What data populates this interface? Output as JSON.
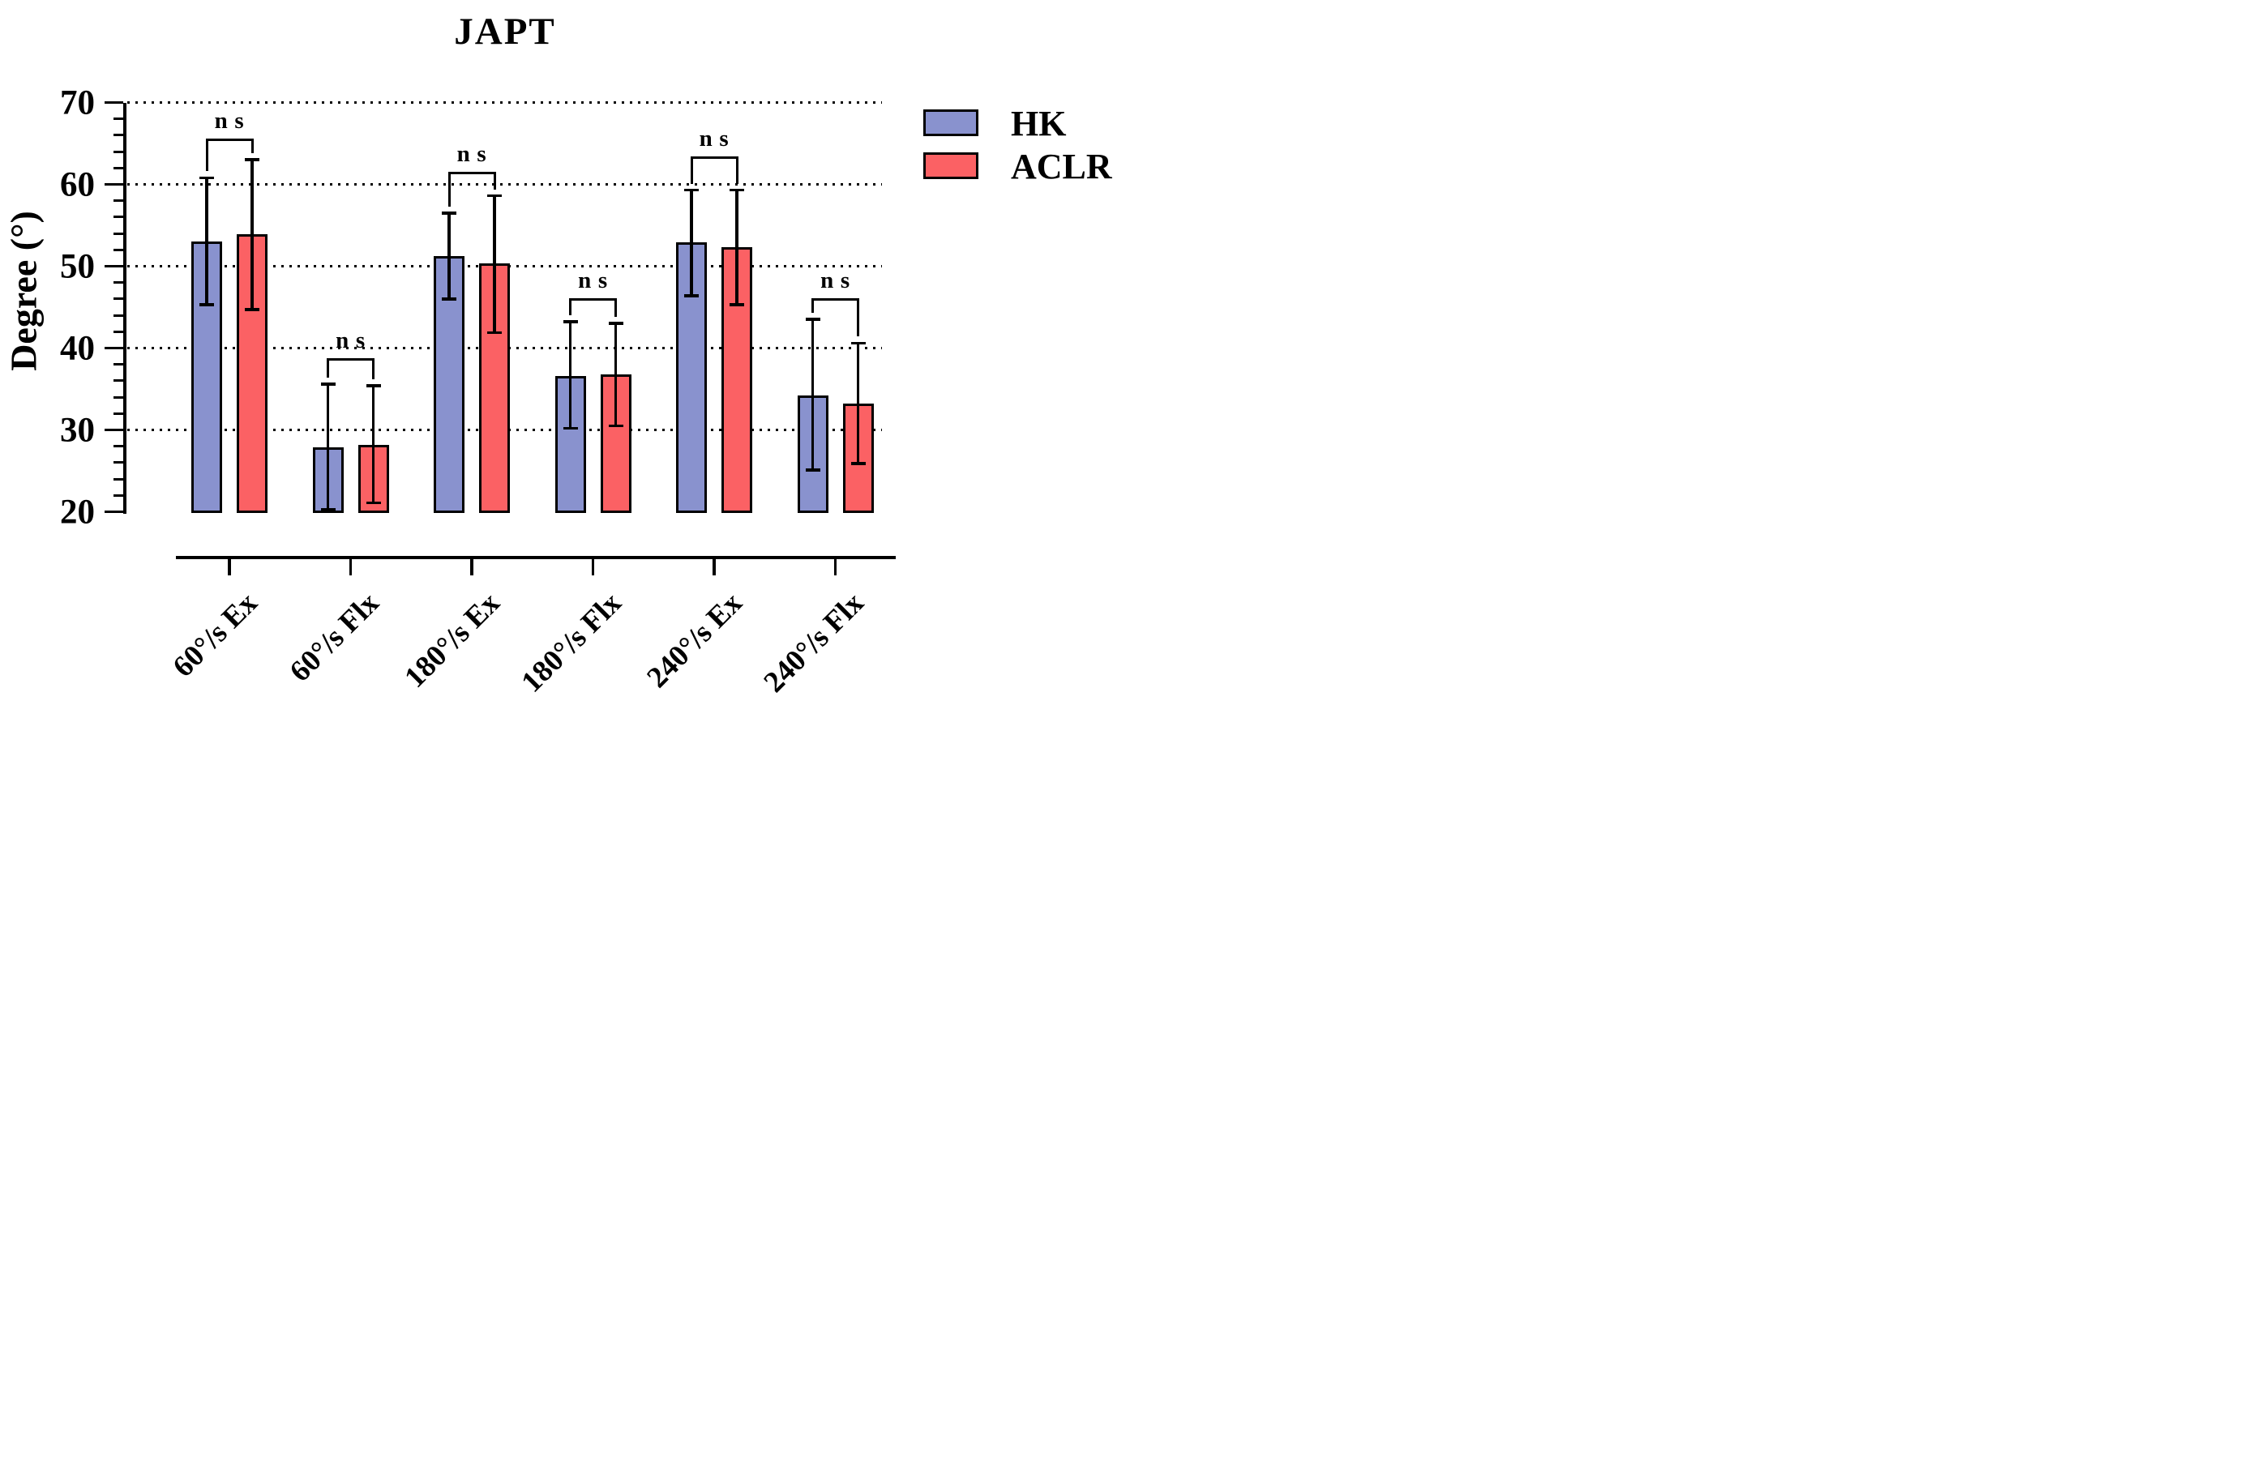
{
  "title": "JAPT",
  "y_axis": {
    "label": "Degree (°)",
    "min": 20,
    "max": 70,
    "major_step": 10,
    "minor_step": 2,
    "tick_labels": [
      "20",
      "30",
      "40",
      "50",
      "60",
      "70"
    ]
  },
  "legend": {
    "position": "top-right",
    "entries": [
      {
        "label": "HK",
        "color": "#8992CE"
      },
      {
        "label": "ACLR",
        "color": "#FB6164"
      }
    ]
  },
  "chart_data": {
    "type": "bar",
    "title": "JAPT",
    "xlabel": "",
    "ylabel": "Degree (°)",
    "ylim": [
      20,
      70
    ],
    "grid": "horizontal-dotted-at-majors",
    "legend_position": "top-right",
    "categories": [
      "60°/s Ex",
      "60°/s Flx",
      "180°/s Ex",
      "180°/s Flx",
      "240°/s Ex",
      "240°/s Flx"
    ],
    "series": [
      {
        "name": "HK",
        "color": "#8992CE",
        "values": [
          53.0,
          27.9,
          51.2,
          36.6,
          52.9,
          34.2
        ],
        "error_top": [
          60.8,
          35.6,
          56.5,
          43.2,
          59.3,
          43.5
        ],
        "error_bottom": [
          45.3,
          20.3,
          46.0,
          30.2,
          46.4,
          25.1
        ]
      },
      {
        "name": "ACLR",
        "color": "#FB6164",
        "values": [
          53.9,
          28.2,
          50.3,
          36.8,
          52.3,
          33.2
        ],
        "error_top": [
          63.0,
          35.4,
          58.6,
          43.0,
          59.3,
          40.6
        ],
        "error_bottom": [
          44.7,
          21.1,
          41.9,
          30.5,
          45.3,
          25.9
        ]
      }
    ],
    "annotations": [
      {
        "label": "ns",
        "category": "60°/s Ex",
        "y": 65.6
      },
      {
        "label": "ns",
        "category": "60°/s Flx",
        "y": 38.8
      },
      {
        "label": "ns",
        "category": "180°/s Ex",
        "y": 61.5
      },
      {
        "label": "ns",
        "category": "180°/s Flx",
        "y": 46.1
      },
      {
        "label": "ns",
        "category": "240°/s Ex",
        "y": 63.4
      },
      {
        "label": "ns",
        "category": "240°/s Flx",
        "y": 46.1
      }
    ]
  }
}
